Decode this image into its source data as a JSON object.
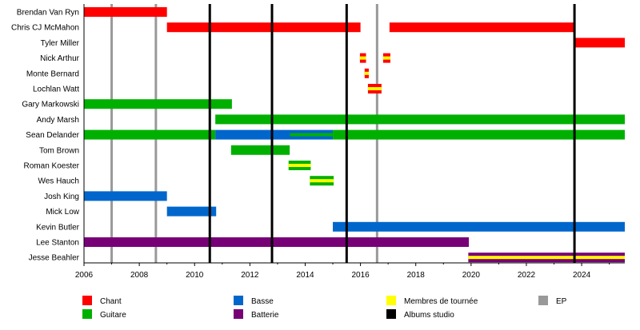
{
  "chart_data": {
    "type": "timeline",
    "xlim": [
      2006,
      2025.56
    ],
    "xticks": [
      2006,
      2008,
      2010,
      2012,
      2014,
      2016,
      2018,
      2020,
      2022,
      2024
    ],
    "colors": {
      "chant": "#ff0000",
      "guitare": "#00b000",
      "basse": "#0066cc",
      "batterie": "#770077",
      "tour": "#ffff00",
      "ep": "#999999",
      "album": "#000000"
    },
    "members": [
      {
        "name": "Brendan Van Ryn",
        "bars": [
          {
            "role": "chant",
            "start": 2006,
            "end": 2009.0
          }
        ]
      },
      {
        "name": "Chris CJ McMahon",
        "bars": [
          {
            "role": "chant",
            "start": 2009.0,
            "end": 2016.0
          },
          {
            "role": "chant",
            "start": 2017.05,
            "end": 2023.74
          }
        ]
      },
      {
        "name": "Tyler Miller",
        "bars": [
          {
            "role": "chant",
            "start": 2023.74,
            "end": 2025.56
          }
        ]
      },
      {
        "name": "Nick Arthur",
        "bars": [
          {
            "role": "chant",
            "start": 2015.98,
            "end": 2016.2,
            "tour": true
          },
          {
            "role": "chant",
            "start": 2016.82,
            "end": 2017.08,
            "tour": true
          }
        ]
      },
      {
        "name": "Monte Bernard",
        "bars": [
          {
            "role": "chant",
            "start": 2016.15,
            "end": 2016.3,
            "tour": true
          }
        ]
      },
      {
        "name": "Lochlan Watt",
        "bars": [
          {
            "role": "chant",
            "start": 2016.27,
            "end": 2016.76,
            "tour": true
          }
        ]
      },
      {
        "name": "Gary Markowski",
        "bars": [
          {
            "role": "guitare",
            "start": 2006,
            "end": 2011.35
          }
        ]
      },
      {
        "name": "Andy Marsh",
        "bars": [
          {
            "role": "guitare",
            "start": 2010.75,
            "end": 2025.56
          }
        ]
      },
      {
        "name": "Sean Delander",
        "bars": [
          {
            "role": "guitare",
            "start": 2006,
            "end": 2010.75
          },
          {
            "role": "basse",
            "start": 2010.75,
            "end": 2015.0
          },
          {
            "role": "guitare",
            "start": 2013.45,
            "end": 2015.0,
            "thin": true
          },
          {
            "role": "guitare",
            "start": 2015.0,
            "end": 2025.56
          }
        ]
      },
      {
        "name": "Tom Brown",
        "bars": [
          {
            "role": "guitare",
            "start": 2011.32,
            "end": 2013.44
          }
        ]
      },
      {
        "name": "Roman Koester",
        "bars": [
          {
            "role": "guitare",
            "start": 2013.4,
            "end": 2014.2,
            "tour": true
          }
        ]
      },
      {
        "name": "Wes Hauch",
        "bars": [
          {
            "role": "guitare",
            "start": 2014.17,
            "end": 2015.03,
            "tour": true
          }
        ]
      },
      {
        "name": "Josh King",
        "bars": [
          {
            "role": "basse",
            "start": 2006,
            "end": 2009.0
          }
        ]
      },
      {
        "name": "Mick Low",
        "bars": [
          {
            "role": "basse",
            "start": 2009.0,
            "end": 2010.78
          }
        ]
      },
      {
        "name": "Kevin Butler",
        "bars": [
          {
            "role": "basse",
            "start": 2015.0,
            "end": 2025.56
          }
        ]
      },
      {
        "name": "Lee Stanton",
        "bars": [
          {
            "role": "batterie",
            "start": 2006,
            "end": 2019.92
          }
        ]
      },
      {
        "name": "Jesse Beahler",
        "bars": [
          {
            "role": "batterie",
            "start": 2019.9,
            "end": 2025.56,
            "tour": true
          }
        ]
      }
    ],
    "eps": [
      2007.0,
      2008.6,
      2016.6
    ],
    "albums": [
      2010.55,
      2012.8,
      2015.5,
      2023.74
    ],
    "legend": [
      {
        "label": "Chant",
        "key": "chant"
      },
      {
        "label": "Guitare",
        "key": "guitare"
      },
      {
        "label": "Basse",
        "key": "basse"
      },
      {
        "label": "Batterie",
        "key": "batterie"
      },
      {
        "label": "Membres de tournée",
        "key": "tour"
      },
      {
        "label": "Albums studio",
        "key": "album"
      },
      {
        "label": "EP",
        "key": "ep"
      }
    ]
  }
}
